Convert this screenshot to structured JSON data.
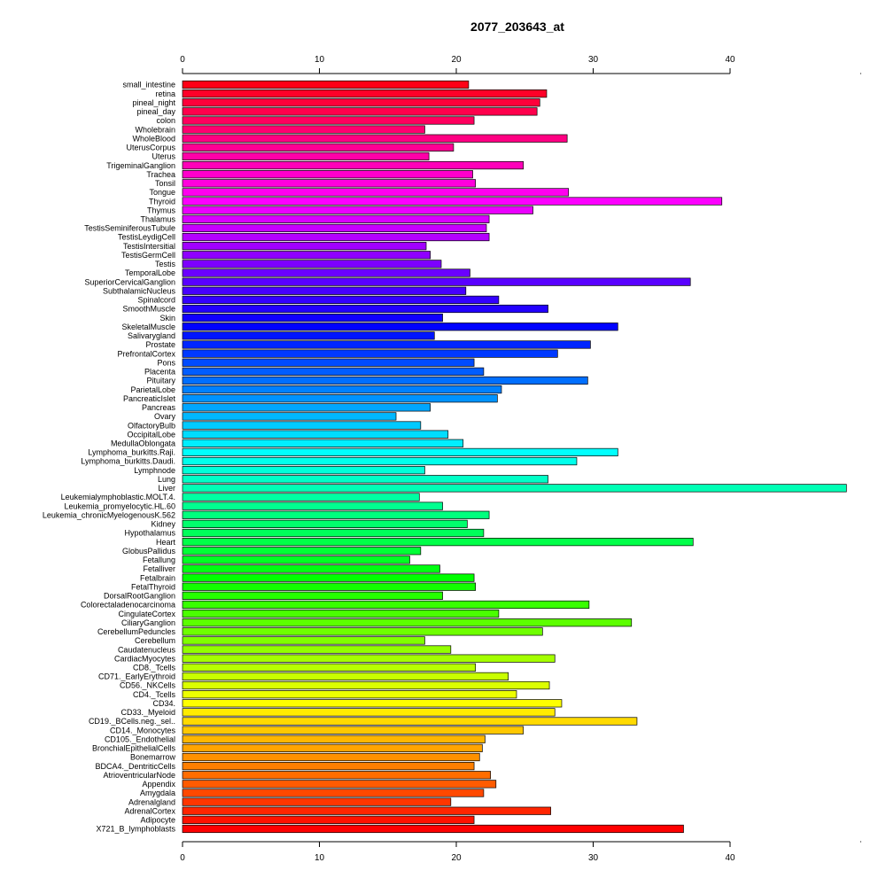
{
  "chart_data": {
    "type": "bar",
    "orientation": "horizontal",
    "title": "2077_203643_at",
    "xlabel": "",
    "ylabel": "",
    "xlim": [
      0,
      48.5
    ],
    "xticks": [
      0,
      10,
      20,
      30,
      40
    ],
    "grid": false,
    "legend": "none",
    "categories": [
      "small_intestine",
      "retina",
      "pineal_night",
      "pineal_day",
      "colon",
      "Wholebrain",
      "WholeBlood",
      "UterusCorpus",
      "Uterus",
      "TrigeminalGanglion",
      "Trachea",
      "Tonsil",
      "Tongue",
      "Thyroid",
      "Thymus",
      "Thalamus",
      "TestisSeminiferousTubule",
      "TestisLeydigCell",
      "TestisIntersitial",
      "TestisGermCell",
      "Testis",
      "TemporalLobe",
      "SuperiorCervicalGanglion",
      "SubthalamicNucleus",
      "Spinalcord",
      "SmoothMuscle",
      "Skin",
      "SkeletalMuscle",
      "Salivarygland",
      "Prostate",
      "PrefrontalCortex",
      "Pons",
      "Placenta",
      "Pituitary",
      "ParietalLobe",
      "PancreaticIslet",
      "Pancreas",
      "Ovary",
      "OlfactoryBulb",
      "OccipitalLobe",
      "MedullaOblongata",
      "Lymphoma_burkitts.Raji.",
      "Lymphoma_burkitts.Daudi.",
      "Lymphnode",
      "Lung",
      "Liver",
      "Leukemialymphoblastic.MOLT.4.",
      "Leukemia_promyelocytic.HL.60",
      "Leukemia_chronicMyelogenousK.562",
      "Kidney",
      "Hypothalamus",
      "Heart",
      "GlobusPallidus",
      "Fetallung",
      "Fetalliver",
      "Fetalbrain",
      "FetalThyroid",
      "DorsalRootGanglion",
      "Colorectaladenocarcinoma",
      "CingulateCortex",
      "CiliaryGanglion",
      "CerebellumPeduncles",
      "Cerebellum",
      "Caudatenucleus",
      "CardiacMyocytes",
      "CD8._Tcells",
      "CD71._EarlyErythroid",
      "CD56._NKCells",
      "CD4._Tcells",
      "CD34.",
      "CD33._Myeloid",
      "CD19._BCells.neg._sel..",
      "CD14._Monocytes",
      "CD105._Endothelial",
      "BronchialEpithelialCells",
      "Bonemarrow",
      "BDCA4._DentriticCells",
      "AtrioventricularNode",
      "Appendix",
      "Amygdala",
      "Adrenalgland",
      "AdrenalCortex",
      "Adipocyte",
      "X721_B_lymphoblasts"
    ],
    "values": [
      20.9,
      26.6,
      26.1,
      25.9,
      21.3,
      17.7,
      28.1,
      19.8,
      18.0,
      24.9,
      21.2,
      21.4,
      28.2,
      39.4,
      25.6,
      22.4,
      22.2,
      22.4,
      17.8,
      18.1,
      18.9,
      21.0,
      37.1,
      20.7,
      23.1,
      26.7,
      19.0,
      31.8,
      18.4,
      29.8,
      27.4,
      21.3,
      22.0,
      29.6,
      23.3,
      23.0,
      18.1,
      15.6,
      17.4,
      19.4,
      20.5,
      31.8,
      28.8,
      17.7,
      26.7,
      48.5,
      17.3,
      19.0,
      22.4,
      20.8,
      22.0,
      37.3,
      17.4,
      16.6,
      18.8,
      21.3,
      21.4,
      19.0,
      29.7,
      23.1,
      32.8,
      26.3,
      17.7,
      19.6,
      27.2,
      21.4,
      23.8,
      26.8,
      24.4,
      27.7,
      27.2,
      33.2,
      24.9,
      22.1,
      21.9,
      21.7,
      21.3,
      22.5,
      22.9,
      22.0,
      19.6,
      26.9,
      21.3,
      36.6
    ]
  }
}
